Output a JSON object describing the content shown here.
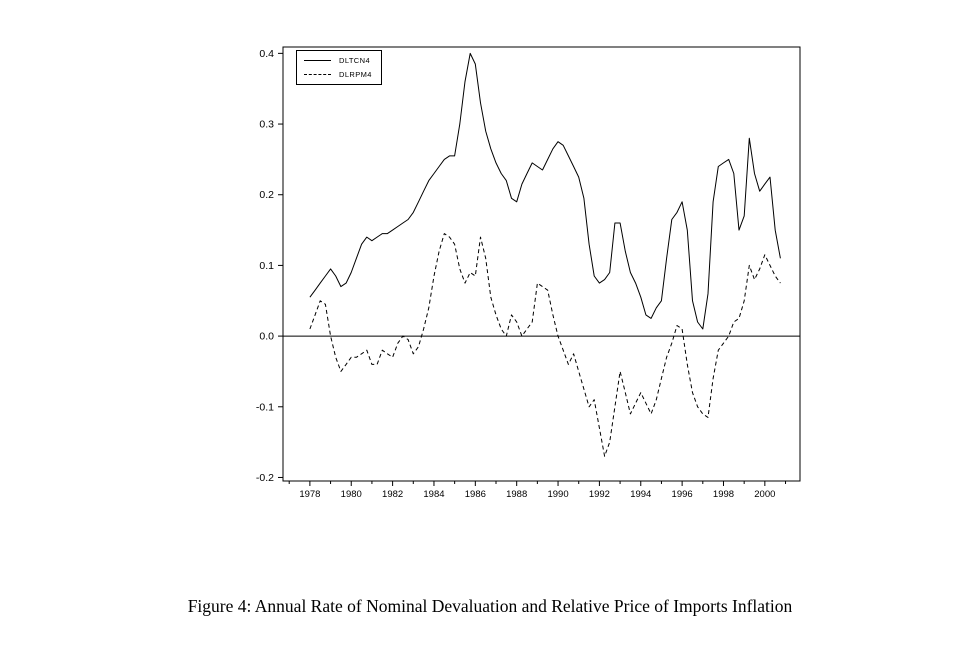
{
  "figure": {
    "caption": "Figure 4:  Annual Rate of Nominal Devaluation and Relative Price of Imports Inflation"
  },
  "chart_data": {
    "type": "line",
    "title": "",
    "xlabel": "",
    "ylabel": "",
    "grid": false,
    "legend_position": "top-left",
    "xlim": [
      1976.7,
      2001.7
    ],
    "ylim": [
      -0.205,
      0.409
    ],
    "x_ticks": [
      1978,
      1980,
      1982,
      1984,
      1986,
      1988,
      1990,
      1992,
      1994,
      1996,
      1998,
      2000
    ],
    "x_minor_ticks": [
      1977,
      1979,
      1981,
      1983,
      1985,
      1987,
      1989,
      1991,
      1993,
      1995,
      1997,
      1999,
      2001
    ],
    "y_ticks": [
      -0.2,
      -0.1,
      0.0,
      0.1,
      0.2,
      0.3,
      0.4
    ],
    "zero_line": 0.0,
    "colors": {
      "line": "#000000",
      "background": "#ffffff"
    },
    "x": [
      1978,
      1978.25,
      1978.5,
      1978.75,
      1979,
      1979.25,
      1979.5,
      1979.75,
      1980,
      1980.25,
      1980.5,
      1980.75,
      1981,
      1981.25,
      1981.5,
      1981.75,
      1982,
      1982.25,
      1982.5,
      1982.75,
      1983,
      1983.25,
      1983.5,
      1983.75,
      1984,
      1984.25,
      1984.5,
      1984.75,
      1985,
      1985.25,
      1985.5,
      1985.75,
      1986,
      1986.25,
      1986.5,
      1986.75,
      1987,
      1987.25,
      1987.5,
      1987.75,
      1988,
      1988.25,
      1988.5,
      1988.75,
      1989,
      1989.25,
      1989.5,
      1989.75,
      1990,
      1990.25,
      1990.5,
      1990.75,
      1991,
      1991.25,
      1991.5,
      1991.75,
      1992,
      1992.25,
      1992.5,
      1992.75,
      1993,
      1993.25,
      1993.5,
      1993.75,
      1994,
      1994.25,
      1994.5,
      1994.75,
      1995,
      1995.25,
      1995.5,
      1995.75,
      1996,
      1996.25,
      1996.5,
      1996.75,
      1997,
      1997.25,
      1997.5,
      1997.75,
      1998,
      1998.25,
      1998.5,
      1998.75,
      1999,
      1999.25,
      1999.5,
      1999.75,
      2000,
      2000.25,
      2000.5,
      2000.75
    ],
    "series": [
      {
        "name": "DLTCN4",
        "style": "solid",
        "values": [
          0.055,
          0.065,
          0.075,
          0.085,
          0.095,
          0.085,
          0.07,
          0.075,
          0.09,
          0.11,
          0.13,
          0.14,
          0.135,
          0.14,
          0.145,
          0.145,
          0.15,
          0.155,
          0.16,
          0.165,
          0.175,
          0.19,
          0.205,
          0.22,
          0.23,
          0.24,
          0.25,
          0.255,
          0.255,
          0.3,
          0.36,
          0.4,
          0.385,
          0.33,
          0.29,
          0.265,
          0.245,
          0.23,
          0.22,
          0.195,
          0.19,
          0.215,
          0.23,
          0.245,
          0.24,
          0.235,
          0.25,
          0.265,
          0.275,
          0.27,
          0.255,
          0.24,
          0.225,
          0.195,
          0.13,
          0.085,
          0.075,
          0.08,
          0.09,
          0.16,
          0.16,
          0.12,
          0.09,
          0.075,
          0.055,
          0.03,
          0.025,
          0.04,
          0.05,
          0.11,
          0.165,
          0.175,
          0.19,
          0.15,
          0.05,
          0.02,
          0.01,
          0.06,
          0.19,
          0.24,
          0.245,
          0.25,
          0.23,
          0.15,
          0.17,
          0.28,
          0.23,
          0.205,
          0.215,
          0.225,
          0.15,
          0.11
        ]
      },
      {
        "name": "DLRPM4",
        "style": "dashed",
        "values": [
          0.01,
          0.03,
          0.05,
          0.045,
          0.0,
          -0.03,
          -0.05,
          -0.04,
          -0.03,
          -0.03,
          -0.025,
          -0.02,
          -0.04,
          -0.04,
          -0.02,
          -0.025,
          -0.03,
          -0.01,
          0.0,
          -0.005,
          -0.025,
          -0.015,
          0.01,
          0.04,
          0.085,
          0.12,
          0.145,
          0.14,
          0.13,
          0.095,
          0.075,
          0.09,
          0.085,
          0.14,
          0.11,
          0.055,
          0.03,
          0.01,
          0.0,
          0.03,
          0.02,
          0.0,
          0.01,
          0.02,
          0.075,
          0.07,
          0.065,
          0.03,
          0.0,
          -0.02,
          -0.04,
          -0.025,
          -0.05,
          -0.075,
          -0.1,
          -0.09,
          -0.13,
          -0.17,
          -0.15,
          -0.1,
          -0.05,
          -0.08,
          -0.11,
          -0.095,
          -0.08,
          -0.095,
          -0.11,
          -0.09,
          -0.06,
          -0.03,
          -0.01,
          0.015,
          0.01,
          -0.04,
          -0.08,
          -0.1,
          -0.11,
          -0.115,
          -0.06,
          -0.02,
          -0.01,
          0.0,
          0.02,
          0.025,
          0.05,
          0.1,
          0.08,
          0.095,
          0.115,
          0.1,
          0.085,
          0.075
        ]
      }
    ]
  }
}
